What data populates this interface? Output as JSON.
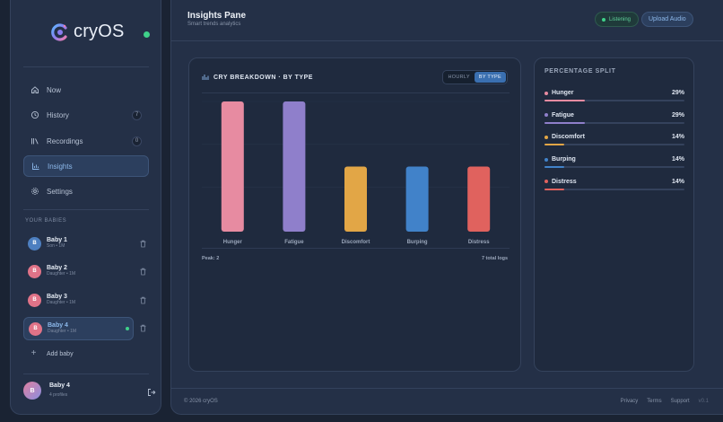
{
  "app": {
    "name": "cryOS"
  },
  "sidebar": {
    "nav": [
      {
        "label": "Now",
        "icon": "home-icon"
      },
      {
        "label": "History",
        "icon": "history-icon",
        "badge": "7"
      },
      {
        "label": "Recordings",
        "icon": "recordings-icon",
        "badge": "0"
      },
      {
        "label": "Insights",
        "icon": "chart-icon",
        "active": true
      },
      {
        "label": "Settings",
        "icon": "gear-icon"
      }
    ],
    "babies_label": "YOUR BABIES",
    "babies": [
      {
        "initial": "B",
        "name": "Baby 1",
        "sub": "Son • 1M",
        "color": "#4d7fc0"
      },
      {
        "initial": "B",
        "name": "Baby 2",
        "sub": "Daughter • 1M",
        "color": "#e07388"
      },
      {
        "initial": "B",
        "name": "Baby 3",
        "sub": "Daughter • 1M",
        "color": "#e07388"
      },
      {
        "initial": "B",
        "name": "Baby 4",
        "sub": "Daughter • 1M",
        "color": "#e07388",
        "active": true
      }
    ],
    "add_baby": "Add baby",
    "profile": {
      "initial": "B",
      "name": "Baby 4",
      "sub": "4 profiles"
    }
  },
  "header": {
    "title": "Insights Pane",
    "subtitle": "Smart trends analytics",
    "listening": "Listening",
    "upload": "Upload Audio"
  },
  "chart_card": {
    "title": "CRY BREAKDOWN · BY TYPE",
    "toggle": [
      "HOURLY",
      "BY TYPE"
    ],
    "peak": "Peak: 2",
    "total": "7 total logs"
  },
  "chart_data": {
    "type": "bar",
    "categories": [
      "Hunger",
      "Fatigue",
      "Discomfort",
      "Burping",
      "Distress"
    ],
    "values": [
      2,
      2,
      1,
      1,
      1
    ],
    "colors": [
      "#e78ba1",
      "#8f7fcb",
      "#e2a646",
      "#4182c9",
      "#e0625e"
    ],
    "ylim": [
      0,
      2
    ],
    "grid": true
  },
  "split": {
    "title": "PERCENTAGE SPLIT",
    "rows": [
      {
        "label": "Hunger",
        "pct": "29%",
        "value": 0.29,
        "color": "#e78ba1"
      },
      {
        "label": "Fatigue",
        "pct": "29%",
        "value": 0.29,
        "color": "#8f7fcb"
      },
      {
        "label": "Discomfort",
        "pct": "14%",
        "value": 0.14,
        "color": "#e2a646"
      },
      {
        "label": "Burping",
        "pct": "14%",
        "value": 0.14,
        "color": "#4182c9"
      },
      {
        "label": "Distress",
        "pct": "14%",
        "value": 0.14,
        "color": "#e0625e"
      }
    ]
  },
  "footer": {
    "copyright": "© 2026 cryOS",
    "links": [
      "Privacy",
      "Terms",
      "Support"
    ],
    "version": "v0.1"
  }
}
